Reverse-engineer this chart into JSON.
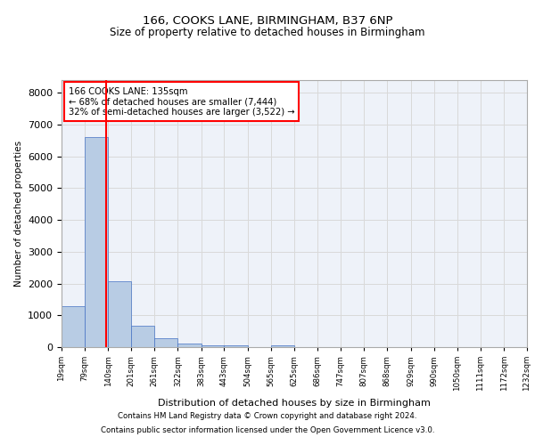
{
  "title1": "166, COOKS LANE, BIRMINGHAM, B37 6NP",
  "title2": "Size of property relative to detached houses in Birmingham",
  "xlabel": "Distribution of detached houses by size in Birmingham",
  "ylabel": "Number of detached properties",
  "annotation_line1": "166 COOKS LANE: 135sqm",
  "annotation_line2": "← 68% of detached houses are smaller (7,444)",
  "annotation_line3": "32% of semi-detached houses are larger (3,522) →",
  "footer1": "Contains HM Land Registry data © Crown copyright and database right 2024.",
  "footer2": "Contains public sector information licensed under the Open Government Licence v3.0.",
  "property_size": 135,
  "bin_edges": [
    19,
    79,
    140,
    201,
    261,
    322,
    383,
    443,
    504,
    565,
    625,
    686,
    747,
    807,
    868,
    929,
    990,
    1050,
    1111,
    1172,
    1232
  ],
  "bar_heights": [
    1300,
    6600,
    2080,
    680,
    290,
    120,
    70,
    70,
    0,
    70,
    0,
    0,
    0,
    0,
    0,
    0,
    0,
    0,
    0,
    0
  ],
  "bar_color": "#b8cce4",
  "bar_edge_color": "#4472c4",
  "highlight_color": "#ff0000",
  "grid_color": "#d9d9d9",
  "background_color": "#eef2f9",
  "ylim": [
    0,
    8400
  ],
  "yticks": [
    0,
    1000,
    2000,
    3000,
    4000,
    5000,
    6000,
    7000,
    8000
  ]
}
